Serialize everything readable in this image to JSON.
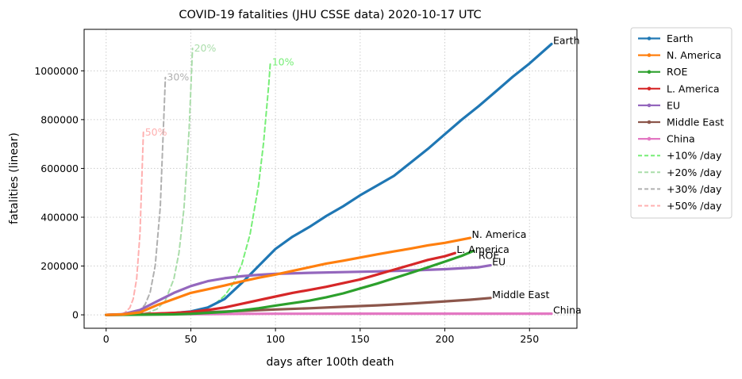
{
  "chart_data": {
    "type": "line",
    "title": "COVID-19 fatalities (JHU CSSE data) 2020-10-17 UTC",
    "xlabel": "days after 100th death",
    "ylabel": "fatalities (linear)",
    "xlim": [
      -13,
      278
    ],
    "ylim": [
      -55000,
      1170000
    ],
    "xticks": [
      0,
      50,
      100,
      150,
      200,
      250
    ],
    "yticks": [
      0,
      200000,
      400000,
      600000,
      800000,
      1000000
    ],
    "grid": true,
    "legend_position": "outside-right",
    "series": [
      {
        "name": "Earth",
        "color": "#1f77b4",
        "end_label": "Earth",
        "x": [
          0,
          10,
          20,
          30,
          40,
          50,
          60,
          70,
          80,
          90,
          100,
          110,
          120,
          130,
          140,
          150,
          160,
          170,
          180,
          190,
          200,
          210,
          220,
          230,
          240,
          250,
          263
        ],
        "y": [
          0,
          500,
          1500,
          3500,
          7000,
          14000,
          30000,
          65000,
          130000,
          200000,
          270000,
          320000,
          360000,
          405000,
          445000,
          490000,
          530000,
          570000,
          625000,
          680000,
          740000,
          800000,
          855000,
          915000,
          975000,
          1030000,
          1110000
        ]
      },
      {
        "name": "N. America",
        "color": "#ff7f0e",
        "end_label": "N. America",
        "x": [
          0,
          10,
          20,
          30,
          40,
          50,
          60,
          70,
          80,
          90,
          100,
          110,
          120,
          130,
          140,
          150,
          160,
          170,
          180,
          190,
          200,
          215
        ],
        "y": [
          0,
          2000,
          10000,
          40000,
          65000,
          90000,
          105000,
          120000,
          137000,
          152000,
          165000,
          180000,
          195000,
          210000,
          222000,
          235000,
          248000,
          260000,
          272000,
          285000,
          295000,
          315000
        ]
      },
      {
        "name": "ROE",
        "color": "#2ca02c",
        "end_label": "ROE",
        "x": [
          0,
          20,
          40,
          50,
          60,
          70,
          80,
          90,
          100,
          110,
          120,
          130,
          140,
          150,
          160,
          170,
          180,
          190,
          200,
          210,
          217
        ],
        "y": [
          0,
          500,
          2000,
          4000,
          8000,
          12000,
          18000,
          27000,
          38000,
          48000,
          58000,
          72000,
          88000,
          108000,
          128000,
          150000,
          172000,
          195000,
          218000,
          242000,
          262000
        ]
      },
      {
        "name": "L. America",
        "color": "#d62728",
        "end_label": "L. America",
        "x": [
          0,
          10,
          20,
          30,
          40,
          50,
          60,
          70,
          80,
          90,
          100,
          110,
          120,
          130,
          140,
          150,
          160,
          170,
          180,
          190,
          200,
          206
        ],
        "y": [
          0,
          500,
          2000,
          5000,
          8000,
          12000,
          20000,
          30000,
          45000,
          60000,
          75000,
          90000,
          102000,
          115000,
          130000,
          145000,
          165000,
          185000,
          205000,
          225000,
          240000,
          253000
        ]
      },
      {
        "name": "EU",
        "color": "#9467bd",
        "end_label": "EU",
        "x": [
          0,
          10,
          20,
          30,
          40,
          50,
          60,
          70,
          80,
          90,
          100,
          120,
          140,
          160,
          180,
          200,
          220,
          227
        ],
        "y": [
          0,
          3000,
          20000,
          55000,
          90000,
          118000,
          138000,
          150000,
          158000,
          164000,
          168000,
          172000,
          175000,
          178000,
          182000,
          187000,
          195000,
          203000
        ]
      },
      {
        "name": "Middle East",
        "color": "#8c564b",
        "end_label": "Middle East",
        "x": [
          0,
          20,
          40,
          60,
          80,
          100,
          120,
          140,
          160,
          180,
          200,
          215,
          227
        ],
        "y": [
          0,
          3000,
          7000,
          11000,
          16000,
          22000,
          27000,
          33000,
          39000,
          46000,
          55000,
          62000,
          69000
        ]
      },
      {
        "name": "China",
        "color": "#e377c2",
        "end_label": "China",
        "x": [
          0,
          20,
          40,
          60,
          80,
          100,
          150,
          200,
          263
        ],
        "y": [
          0,
          1000,
          2500,
          3200,
          4000,
          4600,
          4700,
          4700,
          4700
        ]
      },
      {
        "name": "+10% /day",
        "color": "#77ee77",
        "dashed": true,
        "end_label": "10%",
        "x": [
          0,
          10,
          20,
          30,
          40,
          50,
          55,
          60,
          65,
          70,
          75,
          80,
          85,
          90,
          93,
          96,
          97
        ],
        "y": [
          100,
          259,
          673,
          1745,
          4526,
          11739,
          18906,
          30448,
          49037,
          78975,
          127190,
          204840,
          329900,
          531300,
          707150,
          941200,
          1035320
        ]
      },
      {
        "name": "+20% /day",
        "color": "#aaddaa",
        "dashed": true,
        "end_label": "20%",
        "x": [
          0,
          5,
          10,
          15,
          20,
          25,
          30,
          35,
          40,
          43,
          46,
          49,
          51
        ],
        "y": [
          100,
          249,
          619,
          1541,
          3834,
          9540,
          23738,
          59067,
          146977,
          253977,
          438872,
          758370,
          1092050
        ]
      },
      {
        "name": "+30% /day",
        "color": "#b0b0b0",
        "dashed": true,
        "end_label": "30%",
        "x": [
          0,
          5,
          10,
          15,
          20,
          23,
          26,
          29,
          32,
          35
        ],
        "y": [
          100,
          371,
          1379,
          5119,
          19005,
          41753,
          91732,
          201538,
          442779,
          972796
        ]
      },
      {
        "name": "+50% /day",
        "color": "#ffb0b0",
        "dashed": true,
        "end_label": "50%",
        "x": [
          0,
          4,
          8,
          11,
          14,
          16,
          18,
          20,
          22
        ],
        "y": [
          100,
          506,
          2563,
          8650,
          29193,
          65684,
          147789,
          332526,
          748183
        ]
      }
    ],
    "end_label_offsets": {
      "Earth": [
        0,
        0
      ],
      "N. America": [
        0,
        0
      ],
      "ROE": [
        4,
        10
      ],
      "L. America": [
        0,
        0
      ],
      "EU": [
        0,
        0
      ],
      "Middle East": [
        0,
        0
      ],
      "China": [
        0,
        0
      ],
      "10%": [
        0,
        0
      ],
      "20%": [
        0,
        0
      ],
      "30%": [
        0,
        0
      ],
      "50%": [
        0,
        0
      ]
    }
  }
}
